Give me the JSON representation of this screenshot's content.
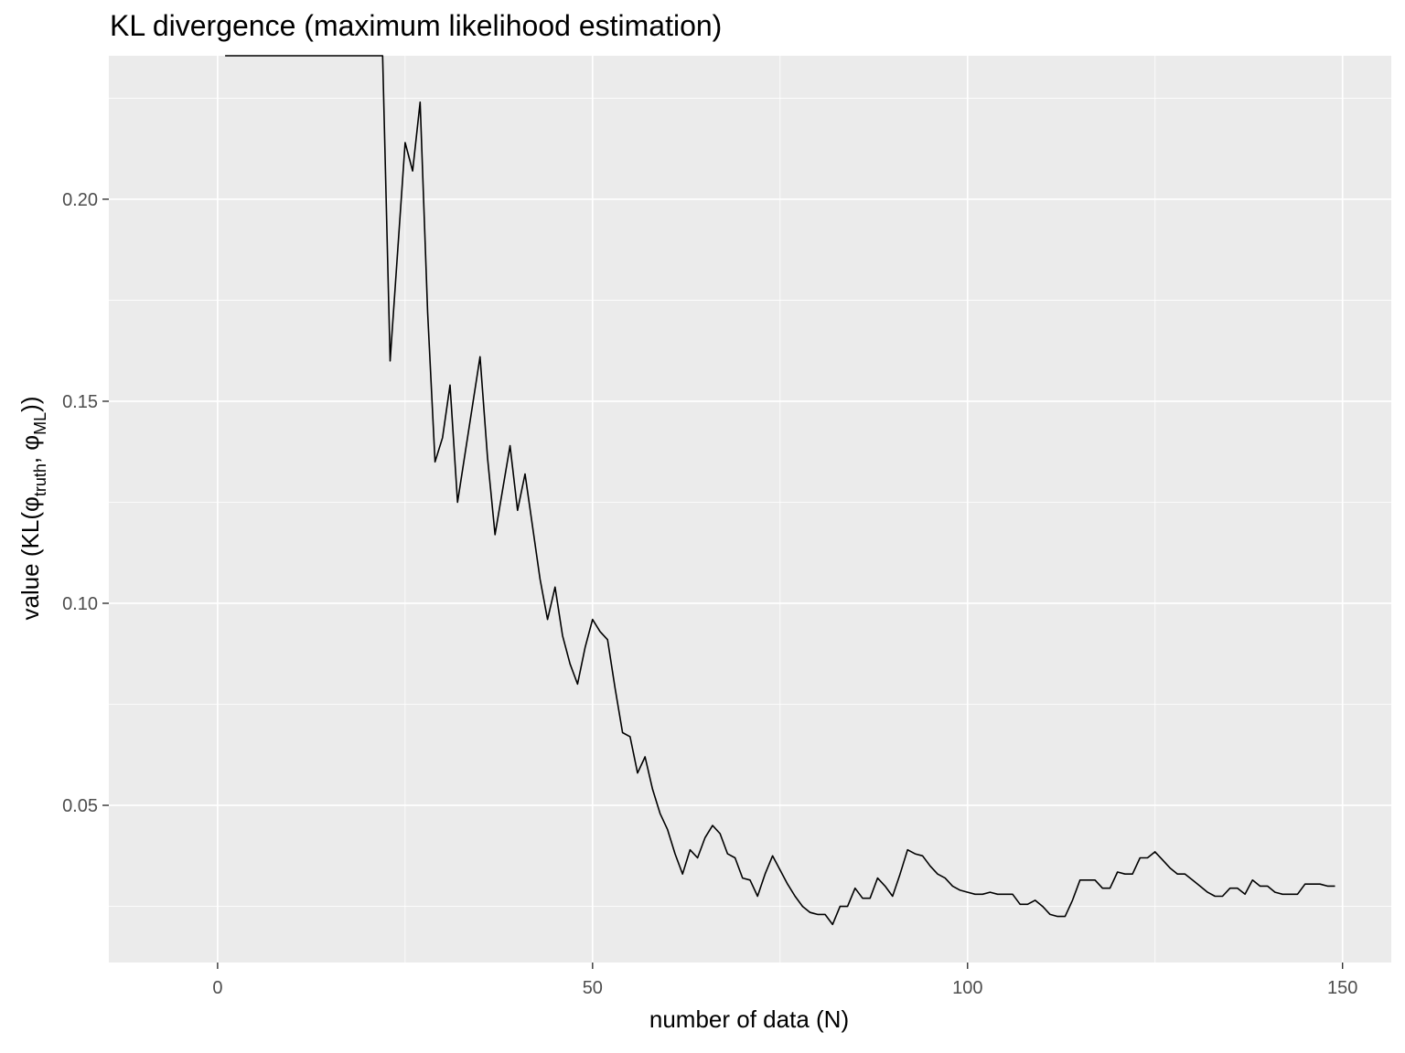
{
  "chart_data": {
    "type": "line",
    "title": "KL divergence (maximum likelihood estimation)",
    "xlabel": "number of data (N)",
    "ylabel": "value (KL(φ_truth, φ_ML))",
    "ylabel_parts": {
      "prefix": "value (KL(",
      "phi1": "φ",
      "sub1": "truth",
      "sep": ", ",
      "phi2": "φ",
      "sub2": "ML",
      "suffix": "))"
    },
    "xlim": [
      -14.5,
      156.5
    ],
    "ylim": [
      0.0111,
      0.2355
    ],
    "x_ticks": [
      0,
      50,
      100,
      150
    ],
    "x_tick_labels": [
      "0",
      "50",
      "100",
      "150"
    ],
    "x_minor_ticks": [
      25,
      75,
      125
    ],
    "y_ticks": [
      0.05,
      0.1,
      0.15,
      0.2
    ],
    "y_tick_labels": [
      "0.05",
      "0.10",
      "0.15",
      "0.20"
    ],
    "y_minor_ticks": [
      0.025,
      0.075,
      0.125,
      0.175,
      0.225
    ],
    "grid": true,
    "background": "#ebebeb",
    "grid_color": "#ffffff",
    "line_color": "#000000",
    "series": [
      {
        "x": [
          1,
          22,
          23,
          25,
          26,
          27,
          28,
          29,
          30,
          31,
          32,
          33,
          34,
          35,
          36,
          37,
          38,
          39,
          40,
          41,
          42,
          43,
          44,
          45,
          46,
          47,
          48,
          49,
          50,
          51,
          52,
          53,
          54,
          55,
          56,
          57,
          58,
          59,
          60,
          61,
          62,
          63,
          64,
          65,
          66,
          67,
          68,
          69,
          70,
          71,
          72,
          73,
          74,
          75,
          76,
          77,
          78,
          79,
          80,
          81,
          82,
          83,
          84,
          85,
          86,
          87,
          88,
          89,
          90,
          91,
          92,
          93,
          94,
          95,
          96,
          97,
          98,
          99,
          100,
          101,
          102,
          103,
          104,
          105,
          106,
          107,
          108,
          109,
          110,
          111,
          112,
          113,
          114,
          115,
          116,
          117,
          118,
          119,
          120,
          121,
          122,
          123,
          124,
          125,
          126,
          127,
          128,
          129,
          130,
          131,
          132,
          133,
          134,
          135,
          136,
          137,
          138,
          139,
          140,
          141,
          142,
          143,
          144,
          145,
          146,
          147,
          148,
          149
        ],
        "y": [
          0.2355,
          0.2355,
          0.16,
          0.214,
          0.207,
          0.224,
          0.172,
          0.135,
          0.141,
          0.154,
          0.125,
          0.137,
          0.149,
          0.161,
          0.136,
          0.117,
          0.128,
          0.139,
          0.123,
          0.132,
          0.119,
          0.106,
          0.096,
          0.104,
          0.092,
          0.085,
          0.08,
          0.089,
          0.096,
          0.093,
          0.091,
          0.079,
          0.068,
          0.067,
          0.058,
          0.062,
          0.054,
          0.048,
          0.044,
          0.038,
          0.033,
          0.039,
          0.037,
          0.042,
          0.045,
          0.043,
          0.038,
          0.037,
          0.032,
          0.0315,
          0.0275,
          0.033,
          0.0375,
          0.034,
          0.0305,
          0.0275,
          0.025,
          0.0235,
          0.023,
          0.023,
          0.0205,
          0.025,
          0.025,
          0.0295,
          0.027,
          0.027,
          0.032,
          0.03,
          0.0275,
          0.033,
          0.039,
          0.038,
          0.0375,
          0.035,
          0.033,
          0.032,
          0.03,
          0.029,
          0.0285,
          0.028,
          0.028,
          0.0285,
          0.028,
          0.028,
          0.028,
          0.0255,
          0.0255,
          0.0265,
          0.025,
          0.023,
          0.0225,
          0.0225,
          0.0265,
          0.0315,
          0.0315,
          0.0315,
          0.0295,
          0.0295,
          0.0335,
          0.033,
          0.033,
          0.037,
          0.037,
          0.0385,
          0.0365,
          0.0345,
          0.033,
          0.033,
          0.0315,
          0.03,
          0.0285,
          0.0275,
          0.0275,
          0.0295,
          0.0295,
          0.028,
          0.0315,
          0.03,
          0.03,
          0.0285,
          0.028,
          0.028,
          0.028,
          0.0305,
          0.0305,
          0.0305,
          0.03,
          0.03
        ]
      }
    ]
  }
}
